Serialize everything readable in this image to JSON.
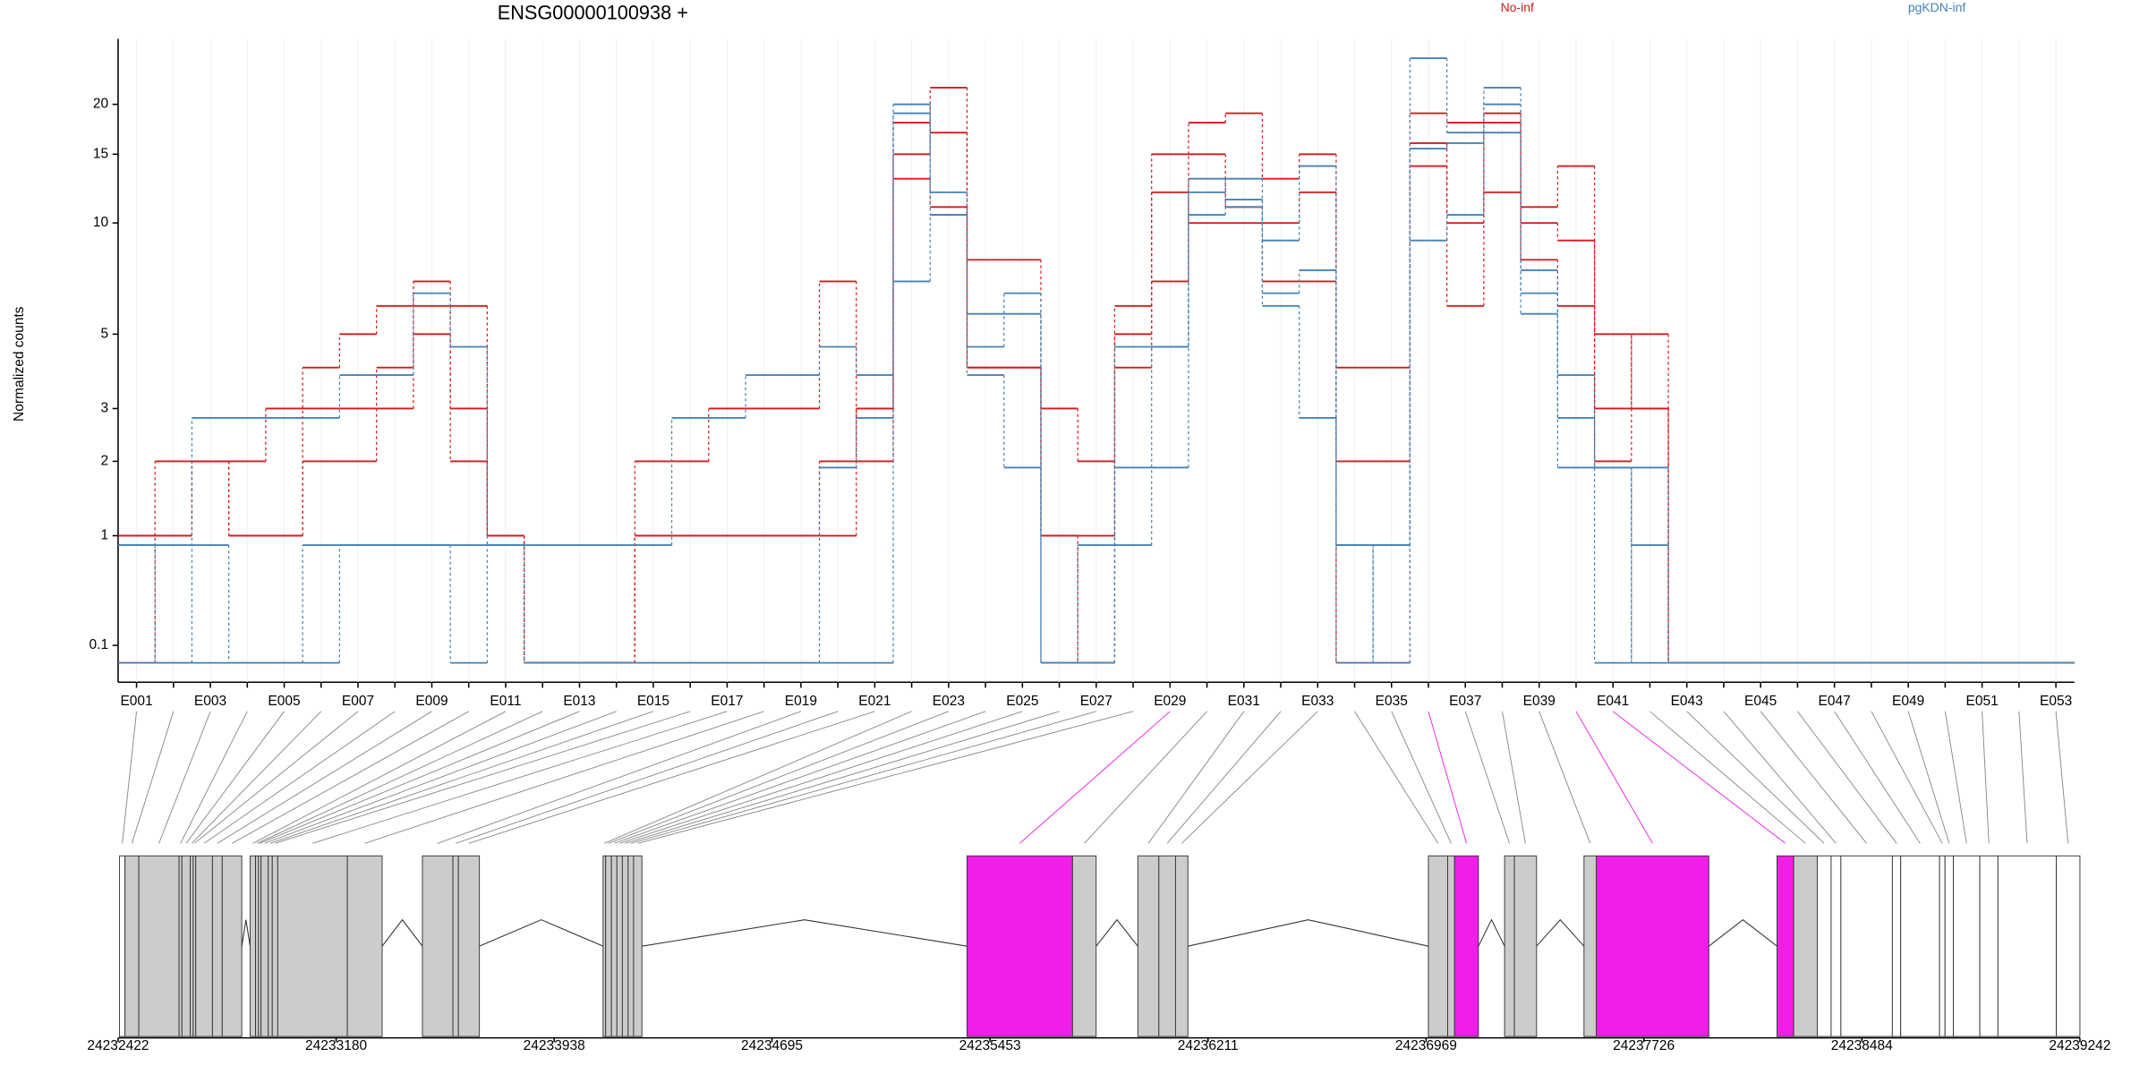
{
  "chart_data": [
    {
      "type": "line",
      "title": "ENSG00000100938 +",
      "y_label": "Normalized counts",
      "y_scale": "log1p",
      "grid": true,
      "categories": [
        "E001",
        null,
        "E003",
        null,
        "E005",
        null,
        "E007",
        null,
        "E009",
        null,
        "E011",
        null,
        "E013",
        null,
        "E015",
        null,
        "E017",
        null,
        "E019",
        null,
        "E021",
        null,
        "E023",
        null,
        "E025",
        null,
        "E027",
        null,
        "E029",
        null,
        "E031",
        null,
        "E033",
        null,
        "E035",
        null,
        "E037",
        null,
        "E039",
        null,
        "E041",
        null,
        "E043",
        null,
        "E045",
        null,
        "E047",
        null,
        "E049",
        null,
        "E051",
        null,
        "E053"
      ],
      "ylim": [
        -0.1,
        29
      ],
      "yticks": [
        0.1,
        1,
        2,
        3,
        5,
        10,
        15,
        20
      ],
      "series": [
        {
          "name": "No-inf",
          "color": "#d7191c",
          "values": [
            [
              1,
              2,
              2,
              2,
              3,
              3,
              3,
              3,
              5,
              2,
              1,
              0,
              0,
              0,
              2,
              2,
              3,
              3,
              3,
              7,
              2,
              15,
              22,
              8,
              8,
              3,
              2,
              6,
              15,
              18,
              19,
              13,
              15,
              2,
              2,
              14,
              6,
              12,
              11,
              14,
              2,
              5,
              0,
              0,
              0,
              0,
              0,
              0,
              0,
              0,
              0,
              0,
              0
            ],
            [
              1,
              1,
              2,
              1,
              1,
              4,
              5,
              6,
              7,
              6,
              1,
              0,
              0,
              0,
              1,
              1,
              1,
              1,
              1,
              1,
              3,
              18,
              17,
              4,
              4,
              1,
              1,
              4,
              7,
              15,
              11,
              10,
              12,
              4,
              4,
              19,
              18,
              18,
              10,
              9,
              5,
              3,
              0,
              0,
              0,
              0,
              0,
              0,
              0,
              0,
              0,
              0,
              0
            ],
            [
              0,
              1,
              2,
              1,
              1,
              2,
              2,
              4,
              6,
              3,
              1,
              0,
              0,
              0,
              1,
              1,
              1,
              1,
              1,
              2,
              3,
              13,
              11,
              4,
              4,
              1,
              0,
              5,
              12,
              10,
              10,
              7,
              7,
              0,
              0,
              16,
              10,
              19,
              8,
              6,
              3,
              3,
              0,
              0,
              0,
              0,
              0,
              0,
              0,
              0,
              0,
              0,
              0
            ]
          ]
        },
        {
          "name": "pgKDN-inf",
          "color": "#4682b4",
          "values": [
            [
              0.9,
              0.9,
              0.9,
              0,
              0,
              0.9,
              0.9,
              0.9,
              0.9,
              0,
              0.9,
              0.9,
              0.9,
              0.9,
              0.9,
              2.8,
              2.8,
              3.8,
              3.8,
              4.6,
              3.8,
              19,
              10.5,
              5.7,
              5.7,
              0,
              0,
              0.9,
              4.6,
              10.5,
              11.5,
              9,
              14,
              0.9,
              0.9,
              26,
              17,
              22,
              6.5,
              3.8,
              1.9,
              0.9,
              0,
              0,
              0,
              0,
              0,
              0,
              0,
              0,
              0,
              0,
              0
            ],
            [
              0,
              0,
              2.8,
              2.8,
              2.8,
              2.8,
              3.8,
              3.8,
              6.5,
              4.6,
              0.9,
              0,
              0,
              0,
              0,
              0,
              0,
              0,
              0,
              1.9,
              2.8,
              20,
              12,
              4.6,
              6.5,
              0,
              0.9,
              4.6,
              4.6,
              12,
              13,
              6.5,
              7.5,
              0.9,
              0,
              15.5,
              16,
              20,
              7.5,
              2.8,
              0,
              1.9,
              0,
              0,
              0,
              0,
              0,
              0,
              0,
              0,
              0,
              0,
              0
            ],
            [
              0.9,
              0,
              0,
              0,
              0,
              0,
              0.9,
              0.9,
              0.9,
              0.9,
              0.9,
              0,
              0,
              0,
              0,
              0,
              0,
              0,
              0,
              0,
              0,
              7,
              10.5,
              3.8,
              1.9,
              0,
              0,
              1.9,
              1.9,
              13,
              11,
              6,
              2.8,
              0,
              0.9,
              9,
              10.5,
              17,
              5.7,
              1.9,
              1.9,
              0,
              0,
              0,
              0,
              0,
              0,
              0,
              0,
              0,
              0,
              0,
              0
            ]
          ]
        }
      ]
    },
    {
      "type": "gene-model",
      "xlim": [
        24232422,
        24239242
      ],
      "xticks": [
        24232422,
        24233180,
        24233938,
        24234695,
        24235453,
        24236211,
        24236969,
        24237726,
        24238484,
        24239242
      ],
      "exons": [
        [
          24232427,
          24232446
        ],
        [
          24232446,
          24232494
        ],
        [
          24232494,
          24232634
        ],
        [
          24232634,
          24232644
        ],
        [
          24232644,
          24232673
        ],
        [
          24232673,
          24232683
        ],
        [
          24232683,
          24232692
        ],
        [
          24232692,
          24232750
        ],
        [
          24232750,
          24232784
        ],
        [
          24232784,
          24232852
        ],
        [
          24232881,
          24232900
        ],
        [
          24232900,
          24232910
        ],
        [
          24232910,
          24232919
        ],
        [
          24232919,
          24232944
        ],
        [
          24232944,
          24232958
        ],
        [
          24232958,
          24232977
        ],
        [
          24232977,
          24233219
        ],
        [
          24233219,
          24233340
        ],
        [
          24233480,
          24233586
        ],
        [
          24233586,
          24233605
        ],
        [
          24233605,
          24233678
        ],
        [
          24234108,
          24234117
        ],
        [
          24234117,
          24234137
        ],
        [
          24234137,
          24234156
        ],
        [
          24234156,
          24234175
        ],
        [
          24234175,
          24234195
        ],
        [
          24234195,
          24234214
        ],
        [
          24234214,
          24234243
        ],
        [
          24235373,
          24235740
        ],
        [
          24235740,
          24235822
        ],
        [
          24235967,
          24236040
        ],
        [
          24236040,
          24236098
        ],
        [
          24236098,
          24236141
        ],
        [
          24236977,
          24237044
        ],
        [
          24237044,
          24237068
        ],
        [
          24237068,
          24237151
        ],
        [
          24237242,
          24237276
        ],
        [
          24237276,
          24237353
        ],
        [
          24237518,
          24237561
        ],
        [
          24237561,
          24237952
        ],
        [
          24238189,
          24238247
        ],
        [
          24238247,
          24238329
        ],
        [
          24238329,
          24238377
        ],
        [
          24238377,
          24238411
        ],
        [
          24238411,
          24238590
        ],
        [
          24238590,
          24238619
        ],
        [
          24238619,
          24238754
        ],
        [
          24238754,
          24238773
        ],
        [
          24238773,
          24238802
        ],
        [
          24238802,
          24238894
        ],
        [
          24238894,
          24238957
        ],
        [
          24238957,
          24239160
        ],
        [
          24239160,
          24239242
        ]
      ],
      "exon_colors": [
        "#ffffff",
        "#cccccc",
        "#cccccc",
        "#cccccc",
        "#cccccc",
        "#cccccc",
        "#cccccc",
        "#cccccc",
        "#cccccc",
        "#cccccc",
        "#cccccc",
        "#cccccc",
        "#cccccc",
        "#cccccc",
        "#cccccc",
        "#cccccc",
        "#cccccc",
        "#cccccc",
        "#cccccc",
        "#cccccc",
        "#cccccc",
        "#cccccc",
        "#cccccc",
        "#cccccc",
        "#cccccc",
        "#cccccc",
        "#cccccc",
        "#cccccc",
        "#f01ee8",
        "#cccccc",
        "#cccccc",
        "#cccccc",
        "#cccccc",
        "#cccccc",
        "#cccccc",
        "#f01ee8",
        "#cccccc",
        "#cccccc",
        "#cccccc",
        "#f01ee8",
        "#f01ee8",
        "#cccccc",
        "#ffffff",
        "#ffffff",
        "#ffffff",
        "#ffffff",
        "#ffffff",
        "#ffffff",
        "#ffffff",
        "#ffffff",
        "#ffffff",
        "#ffffff",
        "#ffffff"
      ]
    }
  ]
}
